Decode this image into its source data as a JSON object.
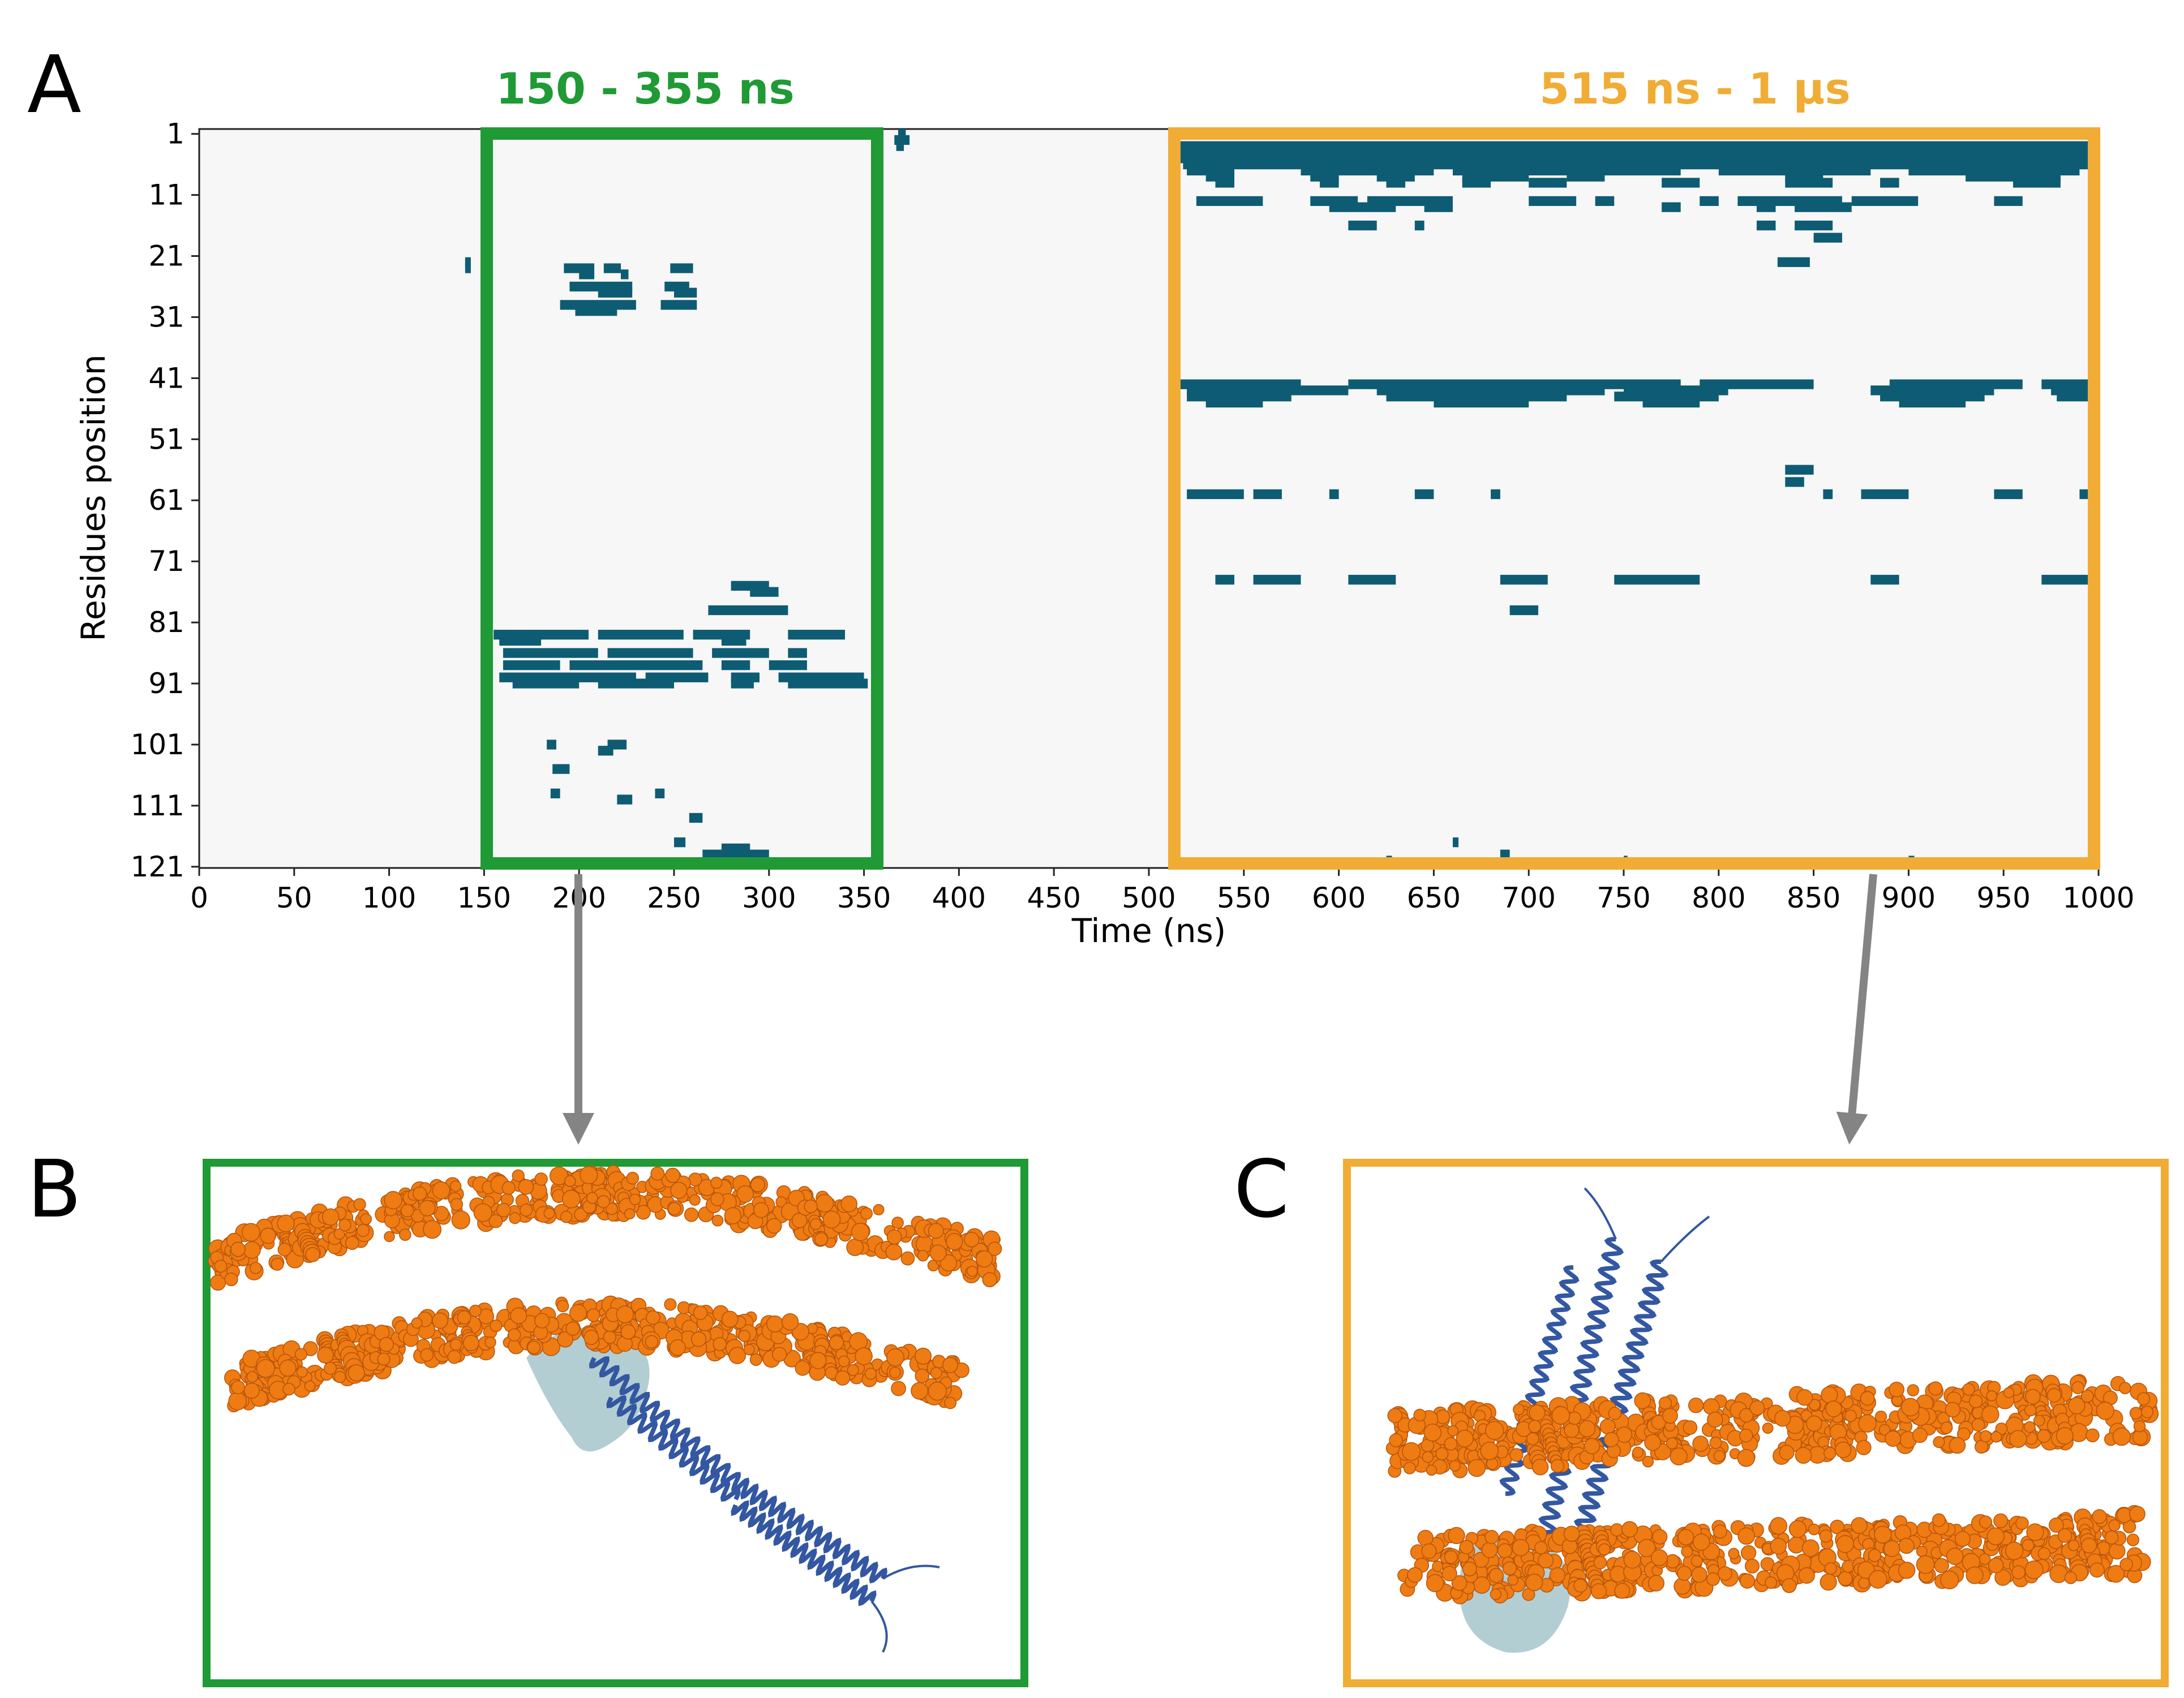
{
  "panel_letters": {
    "a": "A",
    "b": "B",
    "c": "C"
  },
  "colors": {
    "contact": "#0e5c73",
    "plot_background": "#f7f7f7",
    "green_frame": "#1f9a35",
    "orange_frame": "#f0ac35",
    "arrow": "#848484",
    "phosphate": "#ef7b13",
    "protein": "#3357a1",
    "protein_surface": "#a6c6cb"
  },
  "windows": [
    {
      "label": "150 - 355 ns",
      "start": 150,
      "end": 355,
      "color": "#1f9a35"
    },
    {
      "label": "515 ns - 1 µs",
      "start": 515,
      "end": 1000,
      "color": "#f0ac35"
    }
  ],
  "chart_data": {
    "type": "heatmap",
    "title": "",
    "xlabel": "Time (ns)",
    "ylabel": "Residues position",
    "xlim": [
      0,
      1000
    ],
    "ylim": [
      1,
      121
    ],
    "y_inverted": true,
    "x_ticks": [
      0,
      50,
      100,
      150,
      200,
      250,
      300,
      350,
      400,
      450,
      500,
      550,
      600,
      650,
      700,
      750,
      800,
      850,
      900,
      950,
      1000
    ],
    "y_ticks": [
      1,
      11,
      21,
      31,
      41,
      51,
      61,
      71,
      81,
      91,
      101,
      111,
      121
    ],
    "value_meaning": "residue in contact with membrane (binary)",
    "segments": [
      {
        "residue": 3,
        "t0": 513,
        "t1": 1000
      },
      {
        "residue": 4,
        "t0": 513,
        "t1": 1000
      },
      {
        "residue": 5,
        "t0": 515,
        "t1": 1000
      },
      {
        "residue": 6,
        "t0": 518,
        "t1": 998
      },
      {
        "residue": 1,
        "t0": 368,
        "t1": 372
      },
      {
        "residue": 2,
        "t0": 366,
        "t1": 374
      },
      {
        "residue": 3,
        "t0": 367,
        "t1": 371
      },
      {
        "residue": 7,
        "t0": 520,
        "t1": 545
      },
      {
        "residue": 7,
        "t0": 580,
        "t1": 650
      },
      {
        "residue": 7,
        "t0": 660,
        "t1": 780
      },
      {
        "residue": 7,
        "t0": 800,
        "t1": 880
      },
      {
        "residue": 7,
        "t0": 900,
        "t1": 990
      },
      {
        "residue": 8,
        "t0": 530,
        "t1": 545
      },
      {
        "residue": 8,
        "t0": 585,
        "t1": 600
      },
      {
        "residue": 8,
        "t0": 620,
        "t1": 640
      },
      {
        "residue": 8,
        "t0": 665,
        "t1": 700
      },
      {
        "residue": 8,
        "t0": 720,
        "t1": 740
      },
      {
        "residue": 8,
        "t0": 835,
        "t1": 855
      },
      {
        "residue": 8,
        "t0": 930,
        "t1": 980
      },
      {
        "residue": 9,
        "t0": 535,
        "t1": 545
      },
      {
        "residue": 9,
        "t0": 590,
        "t1": 600
      },
      {
        "residue": 9,
        "t0": 625,
        "t1": 635
      },
      {
        "residue": 9,
        "t0": 665,
        "t1": 680
      },
      {
        "residue": 9,
        "t0": 700,
        "t1": 720
      },
      {
        "residue": 9,
        "t0": 770,
        "t1": 790
      },
      {
        "residue": 9,
        "t0": 835,
        "t1": 860
      },
      {
        "residue": 9,
        "t0": 885,
        "t1": 895
      },
      {
        "residue": 9,
        "t0": 955,
        "t1": 980
      },
      {
        "residue": 12,
        "t0": 525,
        "t1": 560
      },
      {
        "residue": 12,
        "t0": 585,
        "t1": 610
      },
      {
        "residue": 12,
        "t0": 615,
        "t1": 660
      },
      {
        "residue": 12,
        "t0": 700,
        "t1": 725
      },
      {
        "residue": 12,
        "t0": 735,
        "t1": 745
      },
      {
        "residue": 12,
        "t0": 790,
        "t1": 800
      },
      {
        "residue": 12,
        "t0": 810,
        "t1": 865
      },
      {
        "residue": 12,
        "t0": 870,
        "t1": 905
      },
      {
        "residue": 12,
        "t0": 945,
        "t1": 960
      },
      {
        "residue": 13,
        "t0": 595,
        "t1": 630
      },
      {
        "residue": 13,
        "t0": 645,
        "t1": 660
      },
      {
        "residue": 13,
        "t0": 770,
        "t1": 780
      },
      {
        "residue": 13,
        "t0": 820,
        "t1": 830
      },
      {
        "residue": 13,
        "t0": 840,
        "t1": 870
      },
      {
        "residue": 16,
        "t0": 605,
        "t1": 620
      },
      {
        "residue": 16,
        "t0": 640,
        "t1": 645
      },
      {
        "residue": 16,
        "t0": 820,
        "t1": 830
      },
      {
        "residue": 16,
        "t0": 840,
        "t1": 860
      },
      {
        "residue": 18,
        "t0": 850,
        "t1": 865
      },
      {
        "residue": 22,
        "t0": 831,
        "t1": 848
      },
      {
        "residue": 22,
        "t0": 140,
        "t1": 143
      },
      {
        "residue": 23,
        "t0": 140,
        "t1": 143
      },
      {
        "residue": 23,
        "t0": 192,
        "t1": 208
      },
      {
        "residue": 23,
        "t0": 213,
        "t1": 222
      },
      {
        "residue": 23,
        "t0": 248,
        "t1": 260
      },
      {
        "residue": 24,
        "t0": 200,
        "t1": 208
      },
      {
        "residue": 24,
        "t0": 222,
        "t1": 226
      },
      {
        "residue": 26,
        "t0": 195,
        "t1": 228
      },
      {
        "residue": 26,
        "t0": 245,
        "t1": 258
      },
      {
        "residue": 27,
        "t0": 210,
        "t1": 228
      },
      {
        "residue": 27,
        "t0": 250,
        "t1": 262
      },
      {
        "residue": 29,
        "t0": 190,
        "t1": 230
      },
      {
        "residue": 29,
        "t0": 243,
        "t1": 262
      },
      {
        "residue": 30,
        "t0": 198,
        "t1": 220
      },
      {
        "residue": 42,
        "t0": 515,
        "t1": 580
      },
      {
        "residue": 42,
        "t0": 605,
        "t1": 780
      },
      {
        "residue": 42,
        "t0": 790,
        "t1": 850
      },
      {
        "residue": 42,
        "t0": 890,
        "t1": 960
      },
      {
        "residue": 42,
        "t0": 970,
        "t1": 1000
      },
      {
        "residue": 43,
        "t0": 520,
        "t1": 605
      },
      {
        "residue": 43,
        "t0": 620,
        "t1": 740
      },
      {
        "residue": 43,
        "t0": 750,
        "t1": 805
      },
      {
        "residue": 43,
        "t0": 880,
        "t1": 945
      },
      {
        "residue": 43,
        "t0": 975,
        "t1": 1000
      },
      {
        "residue": 44,
        "t0": 520,
        "t1": 575
      },
      {
        "residue": 44,
        "t0": 625,
        "t1": 720
      },
      {
        "residue": 44,
        "t0": 745,
        "t1": 800
      },
      {
        "residue": 44,
        "t0": 885,
        "t1": 940
      },
      {
        "residue": 44,
        "t0": 978,
        "t1": 1000
      },
      {
        "residue": 45,
        "t0": 530,
        "t1": 560
      },
      {
        "residue": 45,
        "t0": 650,
        "t1": 700
      },
      {
        "residue": 45,
        "t0": 760,
        "t1": 790
      },
      {
        "residue": 45,
        "t0": 895,
        "t1": 930
      },
      {
        "residue": 56,
        "t0": 835,
        "t1": 850
      },
      {
        "residue": 58,
        "t0": 835,
        "t1": 845
      },
      {
        "residue": 60,
        "t0": 520,
        "t1": 550
      },
      {
        "residue": 60,
        "t0": 555,
        "t1": 570
      },
      {
        "residue": 60,
        "t0": 595,
        "t1": 600
      },
      {
        "residue": 60,
        "t0": 640,
        "t1": 650
      },
      {
        "residue": 60,
        "t0": 680,
        "t1": 685
      },
      {
        "residue": 60,
        "t0": 855,
        "t1": 860
      },
      {
        "residue": 60,
        "t0": 875,
        "t1": 900
      },
      {
        "residue": 60,
        "t0": 945,
        "t1": 960
      },
      {
        "residue": 60,
        "t0": 990,
        "t1": 1000
      },
      {
        "residue": 74,
        "t0": 535,
        "t1": 545
      },
      {
        "residue": 74,
        "t0": 555,
        "t1": 580
      },
      {
        "residue": 74,
        "t0": 605,
        "t1": 630
      },
      {
        "residue": 74,
        "t0": 685,
        "t1": 710
      },
      {
        "residue": 74,
        "t0": 745,
        "t1": 790
      },
      {
        "residue": 74,
        "t0": 880,
        "t1": 895
      },
      {
        "residue": 74,
        "t0": 970,
        "t1": 1000
      },
      {
        "residue": 79,
        "t0": 690,
        "t1": 705
      },
      {
        "residue": 75,
        "t0": 280,
        "t1": 300
      },
      {
        "residue": 76,
        "t0": 290,
        "t1": 305
      },
      {
        "residue": 79,
        "t0": 268,
        "t1": 310
      },
      {
        "residue": 83,
        "t0": 155,
        "t1": 205
      },
      {
        "residue": 83,
        "t0": 210,
        "t1": 255
      },
      {
        "residue": 83,
        "t0": 260,
        "t1": 290
      },
      {
        "residue": 83,
        "t0": 310,
        "t1": 340
      },
      {
        "residue": 84,
        "t0": 158,
        "t1": 180
      },
      {
        "residue": 84,
        "t0": 275,
        "t1": 288
      },
      {
        "residue": 86,
        "t0": 160,
        "t1": 210
      },
      {
        "residue": 86,
        "t0": 215,
        "t1": 260
      },
      {
        "residue": 86,
        "t0": 270,
        "t1": 300
      },
      {
        "residue": 86,
        "t0": 310,
        "t1": 320
      },
      {
        "residue": 88,
        "t0": 160,
        "t1": 190
      },
      {
        "residue": 88,
        "t0": 195,
        "t1": 265
      },
      {
        "residue": 88,
        "t0": 275,
        "t1": 290
      },
      {
        "residue": 88,
        "t0": 300,
        "t1": 320
      },
      {
        "residue": 90,
        "t0": 158,
        "t1": 230
      },
      {
        "residue": 90,
        "t0": 235,
        "t1": 268
      },
      {
        "residue": 90,
        "t0": 280,
        "t1": 295
      },
      {
        "residue": 90,
        "t0": 305,
        "t1": 350
      },
      {
        "residue": 91,
        "t0": 165,
        "t1": 200
      },
      {
        "residue": 91,
        "t0": 210,
        "t1": 250
      },
      {
        "residue": 91,
        "t0": 280,
        "t1": 292
      },
      {
        "residue": 91,
        "t0": 310,
        "t1": 352
      },
      {
        "residue": 101,
        "t0": 183,
        "t1": 188
      },
      {
        "residue": 101,
        "t0": 215,
        "t1": 225
      },
      {
        "residue": 102,
        "t0": 210,
        "t1": 218
      },
      {
        "residue": 105,
        "t0": 186,
        "t1": 195
      },
      {
        "residue": 109,
        "t0": 185,
        "t1": 190
      },
      {
        "residue": 109,
        "t0": 240,
        "t1": 245
      },
      {
        "residue": 110,
        "t0": 220,
        "t1": 228
      },
      {
        "residue": 113,
        "t0": 258,
        "t1": 265
      },
      {
        "residue": 117,
        "t0": 250,
        "t1": 256
      },
      {
        "residue": 118,
        "t0": 275,
        "t1": 290
      },
      {
        "residue": 119,
        "t0": 265,
        "t1": 300
      },
      {
        "residue": 117,
        "t0": 660,
        "t1": 663
      },
      {
        "residue": 119,
        "t0": 685,
        "t1": 690
      },
      {
        "residue": 120,
        "t0": 625,
        "t1": 628
      },
      {
        "residue": 120,
        "t0": 750,
        "t1": 752
      },
      {
        "residue": 120,
        "t0": 900,
        "t1": 903
      }
    ]
  }
}
